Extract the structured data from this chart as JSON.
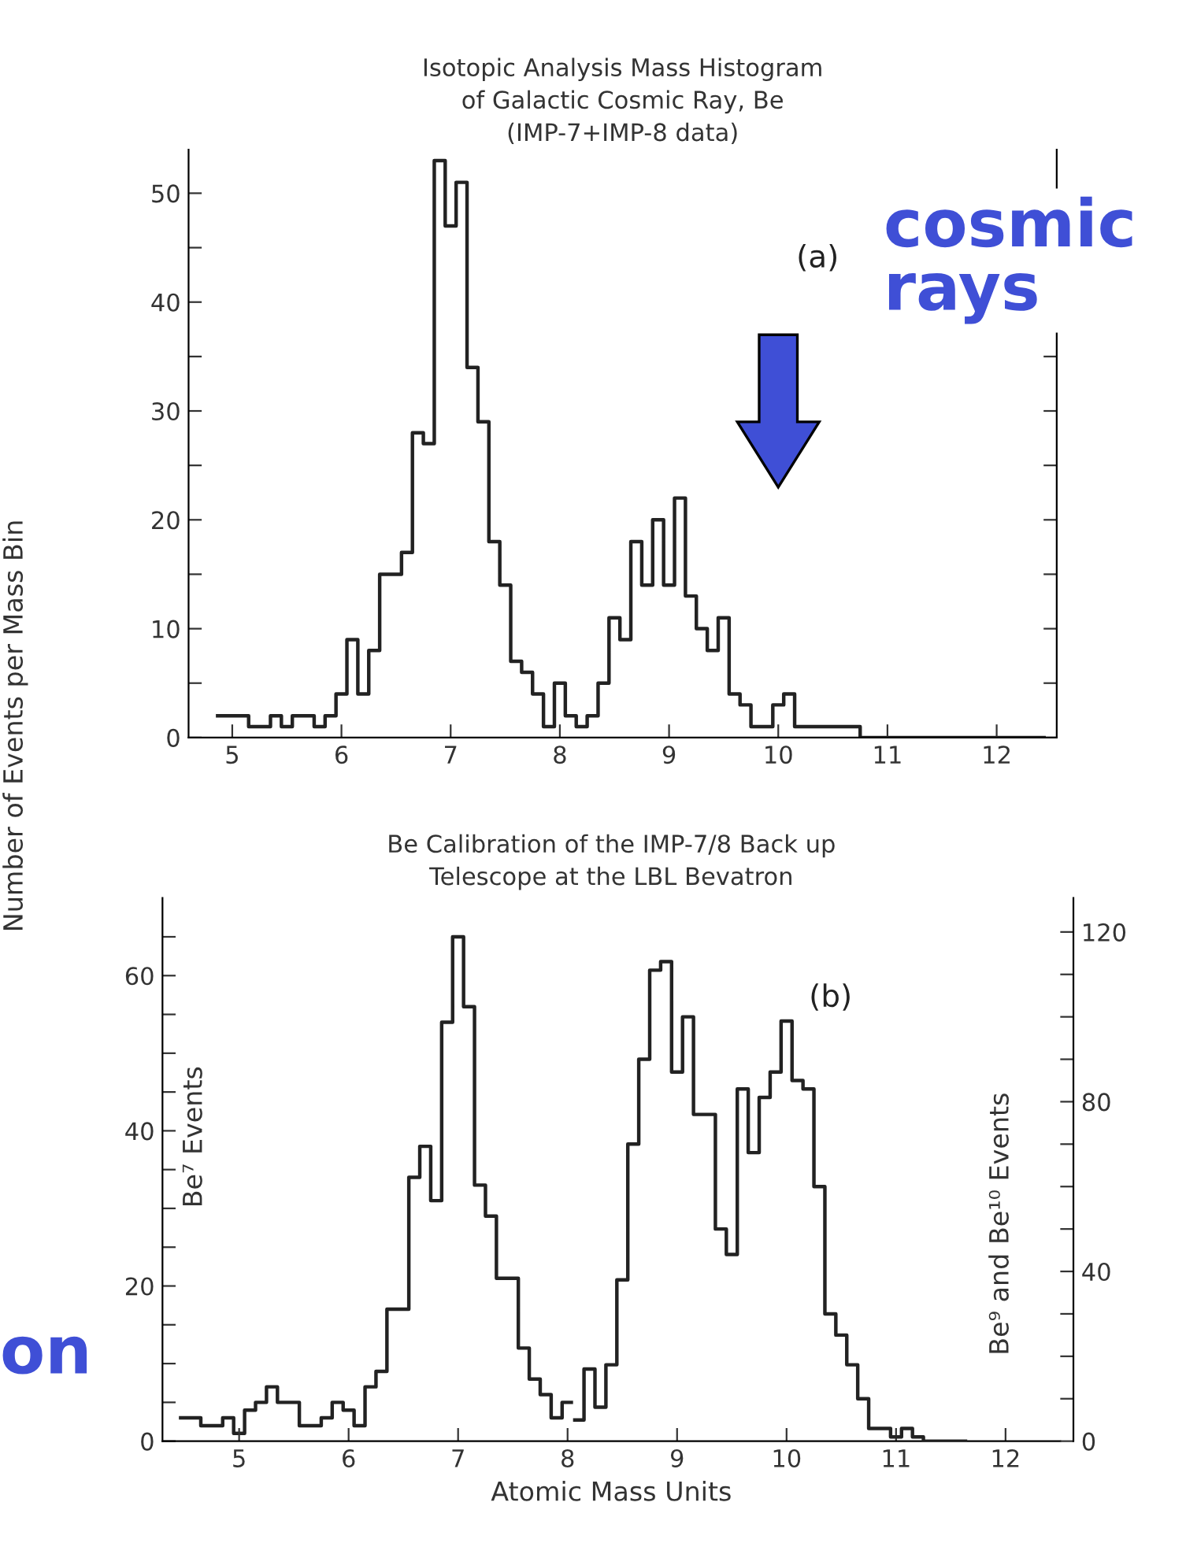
{
  "chart_data": [
    {
      "type": "histogram",
      "title": "Isotopic Analysis Mass Histogram\nof Galactic Cosmic Ray, Be\n(IMP-7+IMP-8 data)",
      "ylabel": "Number of Events per Mass Bin",
      "color": "#222222",
      "bins": [
        4.85,
        4.95,
        5.05,
        5.15,
        5.25,
        5.35,
        5.45,
        5.55,
        5.65,
        5.75,
        5.85,
        5.95,
        6.05,
        6.15,
        6.25,
        6.35,
        6.45,
        6.55,
        6.65,
        6.75,
        6.85,
        6.95,
        7.05,
        7.15,
        7.25,
        7.35,
        7.45,
        7.55,
        7.65,
        7.75,
        7.85,
        7.95,
        8.05,
        8.15,
        8.25,
        8.35,
        8.45,
        8.55,
        8.65,
        8.75,
        8.85,
        8.95,
        9.05,
        9.15,
        9.25,
        9.35,
        9.45,
        9.55,
        9.65,
        9.75,
        9.85,
        9.95,
        10.05,
        10.15,
        10.25,
        10.35,
        10.45,
        10.55,
        10.65,
        10.75,
        10.85,
        10.95,
        11.05,
        11.15,
        11.25,
        11.35,
        11.45,
        11.55,
        11.65,
        11.75,
        11.85,
        11.95,
        12.05,
        12.15,
        12.25,
        12.35,
        12.45
      ],
      "values": [
        2,
        2,
        2,
        1,
        1,
        2,
        1,
        2,
        2,
        1,
        2,
        4,
        9,
        4,
        8,
        15,
        15,
        17,
        28,
        27,
        53,
        47,
        51,
        34,
        29,
        18,
        14,
        7,
        6,
        4,
        1,
        5,
        2,
        1,
        2,
        5,
        11,
        9,
        18,
        14,
        20,
        14,
        22,
        13,
        10,
        8,
        11,
        4,
        3,
        1,
        1,
        3,
        4,
        1,
        1,
        1,
        1,
        1,
        1,
        0,
        0,
        0,
        0,
        0,
        0,
        0,
        0,
        0,
        0,
        0,
        0,
        0,
        0,
        0,
        0,
        0
      ],
      "xlim": [
        4.6,
        12.55
      ],
      "xticks": [
        5,
        6,
        7,
        8,
        9,
        10,
        11,
        12
      ],
      "ylim": [
        0,
        54
      ],
      "yticks": [
        0,
        {
          "value": 5,
          "label": null
        },
        10,
        {
          "value": 15,
          "label": null
        },
        20,
        {
          "value": 25,
          "label": null
        },
        30,
        {
          "value": 35,
          "label": null
        },
        40,
        {
          "value": 45,
          "label": null
        },
        50
      ],
      "annotations": [
        "(a)",
        "cosmic\nrays"
      ]
    },
    {
      "type": "histogram",
      "title": "Be Calibration of the IMP-7/8 Back up\nTelescope at the LBL Bevatron",
      "xlabel": "Atomic Mass Units",
      "ylabel": "Be⁷ Events",
      "color": "#222222",
      "bins": [
        4.45,
        4.55,
        4.65,
        4.75,
        4.85,
        4.95,
        5.05,
        5.15,
        5.25,
        5.35,
        5.45,
        5.55,
        5.65,
        5.75,
        5.85,
        5.95,
        6.05,
        6.15,
        6.25,
        6.35,
        6.45,
        6.55,
        6.65,
        6.75,
        6.85,
        6.95,
        7.05,
        7.15,
        7.25,
        7.35,
        7.45,
        7.55,
        7.65,
        7.75,
        7.85,
        7.95,
        8.05
      ],
      "values": [
        3,
        3,
        2,
        2,
        3,
        1,
        4,
        5,
        7,
        5,
        5,
        2,
        2,
        3,
        5,
        4,
        2,
        7,
        9,
        17,
        17,
        34,
        38,
        31,
        54,
        65,
        56,
        33,
        29,
        21,
        21,
        12,
        8,
        6,
        3,
        5
      ],
      "xlim": [
        4.3,
        12.5
      ],
      "xticks": [
        5,
        6,
        7,
        8,
        9,
        10,
        11,
        12
      ],
      "ylim": [
        0,
        70
      ],
      "yticks": [
        0,
        {
          "value": 5,
          "label": null
        },
        {
          "value": 10,
          "label": null
        },
        {
          "value": 15,
          "label": null
        },
        20,
        {
          "value": 25,
          "label": null
        },
        {
          "value": 30,
          "label": null
        },
        {
          "value": 35,
          "label": null
        },
        40,
        {
          "value": 45,
          "label": null
        },
        {
          "value": 50,
          "label": null
        },
        {
          "value": 55,
          "label": null
        },
        60,
        {
          "value": 65,
          "label": null
        }
      ],
      "annotations": [
        "(b)",
        "on"
      ]
    },
    {
      "type": "histogram",
      "ylabel": "Be⁹ and Be¹⁰ Events",
      "color": "#222222",
      "tick_labels": "y",
      "bins": [
        8.05,
        8.15,
        8.25,
        8.35,
        8.45,
        8.55,
        8.65,
        8.75,
        8.85,
        8.95,
        9.05,
        9.15,
        9.25,
        9.35,
        9.45,
        9.55,
        9.65,
        9.75,
        9.85,
        9.95,
        10.05,
        10.15,
        10.25,
        10.35,
        10.45,
        10.55,
        10.65,
        10.75,
        10.85,
        10.95,
        11.05,
        11.15,
        11.25,
        11.35,
        11.45,
        11.55,
        11.65
      ],
      "values": [
        5,
        17,
        8,
        18,
        38,
        70,
        90,
        111,
        113,
        87,
        100,
        77,
        77,
        50,
        44,
        83,
        68,
        81,
        87,
        99,
        85,
        83,
        60,
        30,
        25,
        18,
        10,
        3,
        3,
        1,
        3,
        1,
        0,
        0,
        0,
        0
      ],
      "xlim": [
        4.3,
        12.5
      ],
      "ylim": [
        0,
        128
      ],
      "yticks": [
        0,
        {
          "value": 10,
          "label": null
        },
        {
          "value": 20,
          "label": null
        },
        {
          "value": 30,
          "label": null
        },
        40,
        {
          "value": 50,
          "label": null
        },
        {
          "value": 60,
          "label": null
        },
        {
          "value": 70,
          "label": null
        },
        80,
        {
          "value": 90,
          "label": null
        },
        {
          "value": 100,
          "label": null
        },
        {
          "value": 110,
          "label": null
        },
        120
      ]
    }
  ]
}
